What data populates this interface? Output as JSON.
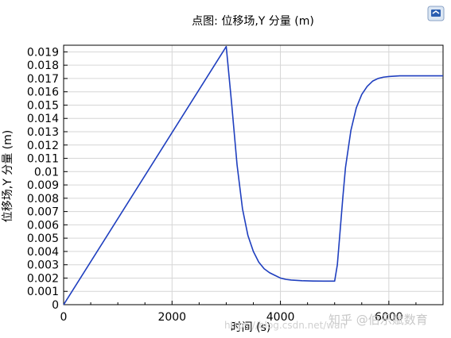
{
  "chart_data": {
    "type": "line",
    "title": "点图: 位移场,Y 分量 (m)",
    "xlabel": "时间 (s)",
    "ylabel": "位移场,Y 分量 (m)",
    "xlim": [
      0,
      7000
    ],
    "ylim": [
      0,
      0.0195
    ],
    "grid": true,
    "x_ticks": [
      0,
      2000,
      4000,
      6000
    ],
    "y_ticks": [
      0,
      0.001,
      0.002,
      0.003,
      0.004,
      0.005,
      0.006,
      0.007,
      0.008,
      0.009,
      0.01,
      0.011,
      0.012,
      0.013,
      0.014,
      0.015,
      0.016,
      0.017,
      0.018,
      0.019
    ],
    "x_tick_labels": [
      "0",
      "2000",
      "4000",
      "6000"
    ],
    "y_tick_labels": [
      "0",
      "0.001",
      "0.002",
      "0.003",
      "0.004",
      "0.005",
      "0.006",
      "0.007",
      "0.008",
      "0.009",
      "0.01",
      "0.011",
      "0.012",
      "0.013",
      "0.014",
      "0.015",
      "0.016",
      "0.017",
      "0.018",
      "0.019"
    ],
    "series": [
      {
        "color": "#1f3fbf",
        "x": [
          0,
          3000,
          3100,
          3200,
          3300,
          3400,
          3500,
          3600,
          3700,
          3800,
          3900,
          4000,
          4100,
          4200,
          4400,
          4600,
          4800,
          5000,
          5050,
          5100,
          5150,
          5200,
          5300,
          5400,
          5500,
          5600,
          5700,
          5800,
          5900,
          6000,
          6200,
          6400,
          6600,
          7000
        ],
        "y": [
          0,
          0.0194,
          0.0151,
          0.0105,
          0.0072,
          0.0052,
          0.004,
          0.0032,
          0.0027,
          0.0024,
          0.0022,
          0.002,
          0.0019,
          0.00185,
          0.0018,
          0.00178,
          0.00177,
          0.00177,
          0.003,
          0.0055,
          0.008,
          0.0103,
          0.0131,
          0.0148,
          0.0158,
          0.0164,
          0.0168,
          0.017,
          0.0171,
          0.01715,
          0.0172,
          0.0172,
          0.0172,
          0.0172
        ]
      }
    ]
  },
  "icons": {
    "app_logo": "comsol-logo-icon"
  },
  "watermark": {
    "brand": "知乎 @伯乐赋数育",
    "url": "https://blog.csdn.net/wan"
  }
}
